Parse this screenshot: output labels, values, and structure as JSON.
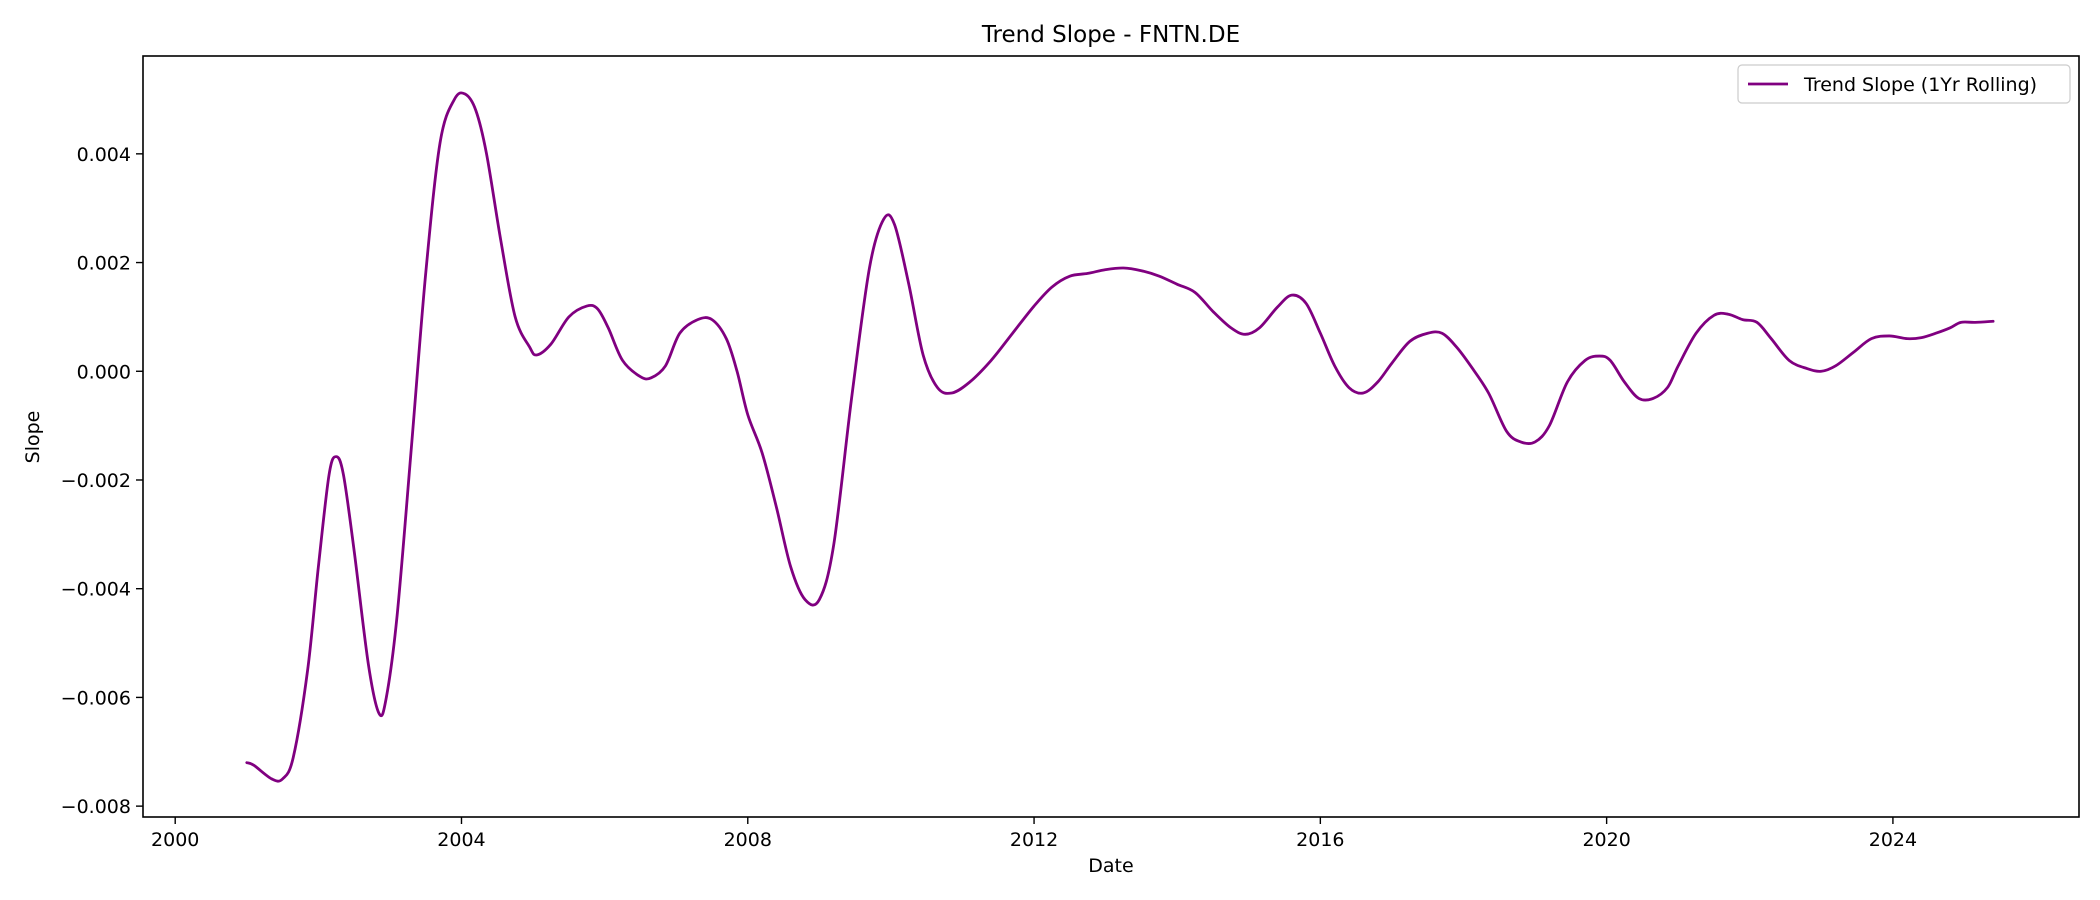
{
  "chart_data": {
    "type": "line",
    "title": "Trend Slope - FNTN.DE",
    "xlabel": "Date",
    "ylabel": "Slope",
    "xlim": [
      1999.55,
      2026.6
    ],
    "ylim": [
      -0.0082,
      0.0058
    ],
    "x_ticks": [
      2000,
      2004,
      2008,
      2012,
      2016,
      2020,
      2024
    ],
    "x_tick_labels": [
      "2000",
      "2004",
      "2008",
      "2012",
      "2016",
      "2020",
      "2024"
    ],
    "y_ticks": [
      -0.008,
      -0.006,
      -0.004,
      -0.002,
      0.0,
      0.002,
      0.004
    ],
    "y_tick_labels": [
      "−0.008",
      "−0.006",
      "−0.004",
      "−0.002",
      "0.000",
      "0.002",
      "0.004"
    ],
    "grid": false,
    "legend_position": "top-right",
    "series": [
      {
        "name": "Trend Slope (1Yr Rolling)",
        "color": "#800080",
        "x": [
          2001.0,
          2001.1,
          2001.35,
          2001.5,
          2001.65,
          2001.85,
          2002.0,
          2002.15,
          2002.25,
          2002.35,
          2002.5,
          2002.7,
          2002.85,
          2002.95,
          2003.1,
          2003.3,
          2003.5,
          2003.7,
          2003.9,
          2004.05,
          2004.2,
          2004.35,
          2004.55,
          2004.75,
          2004.95,
          2005.05,
          2005.25,
          2005.5,
          2005.75,
          2005.9,
          2006.05,
          2006.25,
          2006.5,
          2006.65,
          2006.85,
          2007.05,
          2007.3,
          2007.5,
          2007.7,
          2007.85,
          2008.0,
          2008.2,
          2008.4,
          2008.6,
          2008.8,
          2009.0,
          2009.2,
          2009.45,
          2009.7,
          2009.9,
          2010.05,
          2010.25,
          2010.45,
          2010.65,
          2010.85,
          2011.1,
          2011.4,
          2011.7,
          2012.0,
          2012.25,
          2012.5,
          2012.75,
          2013.0,
          2013.25,
          2013.5,
          2013.75,
          2014.0,
          2014.25,
          2014.5,
          2014.75,
          2014.95,
          2015.15,
          2015.4,
          2015.6,
          2015.8,
          2016.0,
          2016.2,
          2016.4,
          2016.6,
          2016.8,
          2017.0,
          2017.25,
          2017.5,
          2017.7,
          2017.9,
          2018.1,
          2018.35,
          2018.6,
          2018.8,
          2019.0,
          2019.2,
          2019.45,
          2019.7,
          2019.9,
          2020.05,
          2020.25,
          2020.45,
          2020.65,
          2020.85,
          2021.0,
          2021.25,
          2021.5,
          2021.7,
          2021.9,
          2022.1,
          2022.3,
          2022.55,
          2022.8,
          2023.0,
          2023.2,
          2023.45,
          2023.7,
          2023.95,
          2024.2,
          2024.4,
          2024.6,
          2024.8,
          2024.95,
          2025.15,
          2025.4
        ],
        "y": [
          -0.0072,
          -0.00725,
          -0.0075,
          -0.0075,
          -0.0071,
          -0.0055,
          -0.0036,
          -0.0019,
          -0.00157,
          -0.0019,
          -0.0033,
          -0.0054,
          -0.0063,
          -0.006,
          -0.0045,
          -0.0014,
          0.0018,
          0.0042,
          0.005,
          0.0051,
          0.0048,
          0.004,
          0.0024,
          0.001,
          0.00045,
          0.0003,
          0.0005,
          0.001,
          0.0012,
          0.00115,
          0.0008,
          0.0002,
          -0.0001,
          -0.00012,
          0.0001,
          0.0007,
          0.00095,
          0.00095,
          0.0006,
          0.0,
          -0.0008,
          -0.0015,
          -0.0025,
          -0.0036,
          -0.0042,
          -0.0042,
          -0.0032,
          -0.0005,
          0.0019,
          0.0028,
          0.0027,
          0.0016,
          0.0003,
          -0.0003,
          -0.0004,
          -0.0002,
          0.0002,
          0.0007,
          0.0012,
          0.00155,
          0.00175,
          0.0018,
          0.00187,
          0.0019,
          0.00185,
          0.00175,
          0.0016,
          0.00145,
          0.0011,
          0.0008,
          0.00068,
          0.0008,
          0.00118,
          0.0014,
          0.00125,
          0.0007,
          0.0001,
          -0.0003,
          -0.0004,
          -0.0002,
          0.00015,
          0.00055,
          0.0007,
          0.0007,
          0.00045,
          0.0001,
          -0.0004,
          -0.0011,
          -0.0013,
          -0.0013,
          -0.001,
          -0.0002,
          0.0002,
          0.00028,
          0.0002,
          -0.0002,
          -0.0005,
          -0.0005,
          -0.0003,
          0.0001,
          0.0007,
          0.00103,
          0.00105,
          0.00095,
          0.0009,
          0.0006,
          0.0002,
          5e-05,
          -0.0,
          0.0001,
          0.00035,
          0.0006,
          0.00065,
          0.0006,
          0.00062,
          0.0007,
          0.0008,
          0.0009,
          0.0009,
          0.00092
        ]
      }
    ]
  }
}
